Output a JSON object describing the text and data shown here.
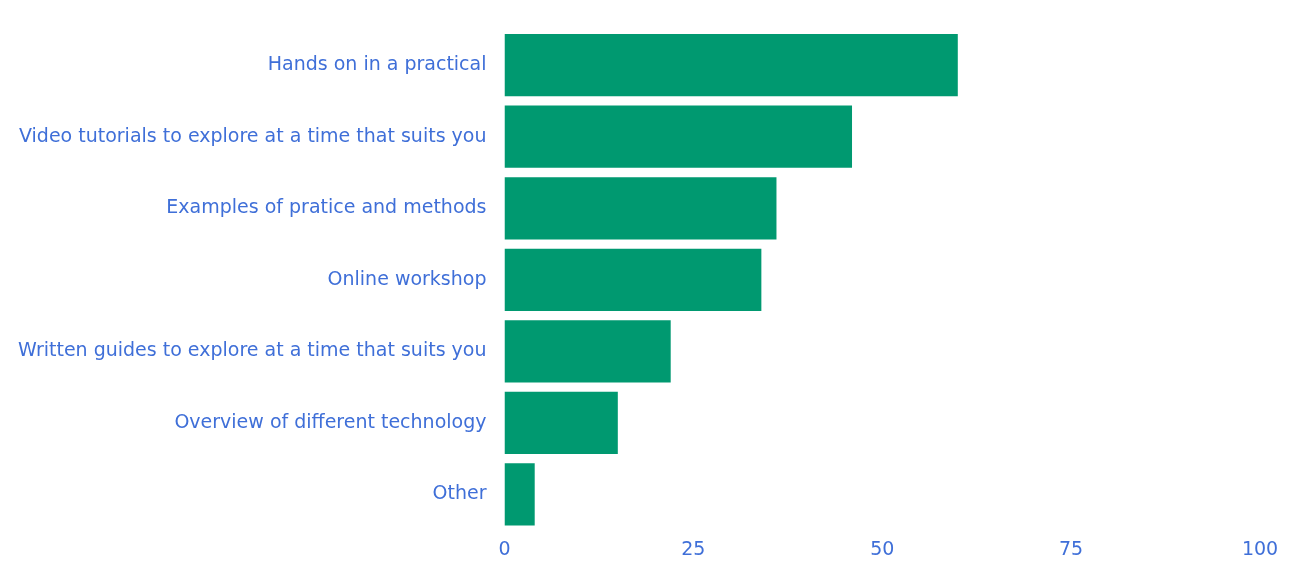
{
  "chart_data": {
    "type": "bar",
    "orientation": "horizontal",
    "categories": [
      "Hands on in a practical",
      "Video tutorials to explore at a time that suits you",
      "Examples of pratice and methods",
      "Online workshop",
      "Written guides to explore at a time that suits you",
      "Overview of different technology",
      "Other"
    ],
    "values": [
      60,
      46,
      36,
      34,
      22,
      15,
      4
    ],
    "color": "#009970",
    "xlim": [
      0,
      100
    ],
    "xticks": [
      0,
      25,
      50,
      75,
      100
    ],
    "grid": false,
    "legend": false
  }
}
